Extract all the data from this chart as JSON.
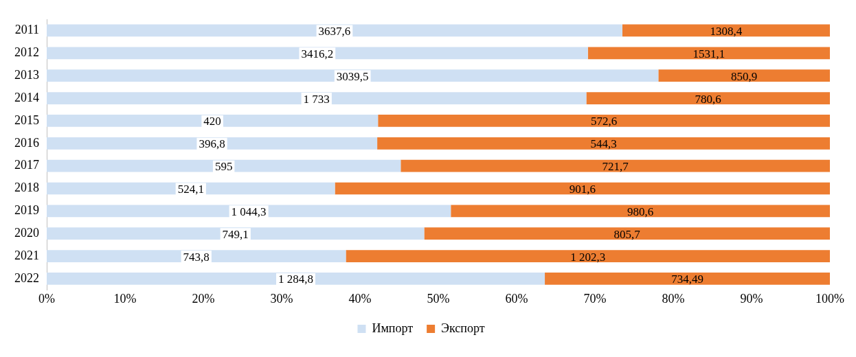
{
  "chart_data": {
    "type": "bar",
    "orientation": "horizontal",
    "stacked": true,
    "categories": [
      "2011",
      "2012",
      "2013",
      "2014",
      "2015",
      "2016",
      "2017",
      "2018",
      "2019",
      "2020",
      "2021",
      "2022"
    ],
    "series": [
      {
        "name": "Импорт",
        "color": "#cfe0f3",
        "values": [
          73.5,
          69.1,
          78.1,
          68.9,
          42.3,
          42.2,
          45.2,
          36.8,
          51.6,
          48.2,
          38.2,
          63.6
        ]
      },
      {
        "name": "Экспорт",
        "color": "#ed7d31",
        "values": [
          26.5,
          30.9,
          21.9,
          31.1,
          57.7,
          57.8,
          54.8,
          63.2,
          48.4,
          51.8,
          61.8,
          36.4
        ]
      }
    ],
    "annotations": [
      {
        "text": "3637,6",
        "x": 36.75,
        "y": "2011"
      },
      {
        "text": "3416,2",
        "x": 34.55,
        "y": "2012"
      },
      {
        "text": "3039,5",
        "x": 39.05,
        "y": "2013"
      },
      {
        "text": "1 733",
        "x": 34.45,
        "y": "2014"
      },
      {
        "text": "420",
        "x": 21.15,
        "y": "2015"
      },
      {
        "text": "396,8",
        "x": 21.1,
        "y": "2016"
      },
      {
        "text": "595",
        "x": 22.6,
        "y": "2017"
      },
      {
        "text": "524,1",
        "x": 18.4,
        "y": "2018"
      },
      {
        "text": "1 044,3",
        "x": 25.8,
        "y": "2019"
      },
      {
        "text": "749,1",
        "x": 24.1,
        "y": "2020"
      },
      {
        "text": "743,8",
        "x": 19.1,
        "y": "2021"
      },
      {
        "text": "1 284,8",
        "x": 31.8,
        "y": "2022"
      },
      {
        "text": "1308,4",
        "x": 86.75,
        "y": "2011"
      },
      {
        "text": "1531,1",
        "x": 84.55,
        "y": "2012"
      },
      {
        "text": "850,9",
        "x": 89.05,
        "y": "2013"
      },
      {
        "text": "780,6",
        "x": 84.45,
        "y": "2014"
      },
      {
        "text": "572,6",
        "x": 71.15,
        "y": "2015"
      },
      {
        "text": "544,3",
        "x": 71.1,
        "y": "2016"
      },
      {
        "text": "721,7",
        "x": 72.6,
        "y": "2017"
      },
      {
        "text": "901,6",
        "x": 68.4,
        "y": "2018"
      },
      {
        "text": "980,6",
        "x": 75.8,
        "y": "2019"
      },
      {
        "text": "805,7",
        "x": 74.1,
        "y": "2020"
      },
      {
        "text": "1 202,3",
        "x": 69.1,
        "y": "2021"
      },
      {
        "text": "734,49",
        "x": 81.8,
        "y": "2022"
      }
    ],
    "xlim": [
      0,
      100
    ],
    "xticks": [
      {
        "value": 0,
        "label": "0%"
      },
      {
        "value": 10,
        "label": "10%"
      },
      {
        "value": 20,
        "label": "20%"
      },
      {
        "value": 30,
        "label": "30%"
      },
      {
        "value": 40,
        "label": "40%"
      },
      {
        "value": 50,
        "label": "50%"
      },
      {
        "value": 60,
        "label": "60%"
      },
      {
        "value": 70,
        "label": "70%"
      },
      {
        "value": 80,
        "label": "80%"
      },
      {
        "value": 90,
        "label": "90%"
      },
      {
        "value": 100,
        "label": "100%"
      }
    ],
    "grid": false,
    "legend": "bottom"
  }
}
